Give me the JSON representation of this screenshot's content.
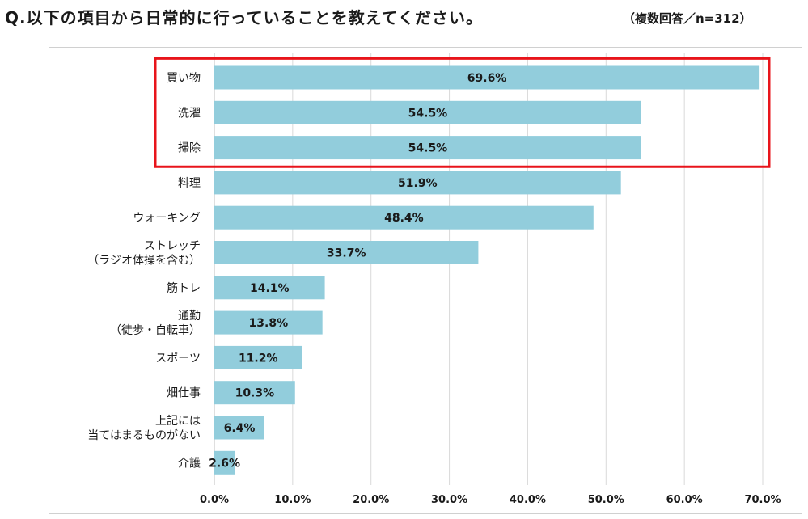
{
  "title": "Q.以下の項目から日常的に行っていることを教えてください。",
  "subtitle": "（複数回答／n=312）",
  "chart_data": {
    "type": "bar",
    "orientation": "horizontal",
    "categories": [
      [
        "買い物"
      ],
      [
        "洗濯"
      ],
      [
        "掃除"
      ],
      [
        "料理"
      ],
      [
        "ウォーキング"
      ],
      [
        "ストレッチ",
        "（ラジオ体操を含む）"
      ],
      [
        "筋トレ"
      ],
      [
        "通勤",
        "（徒歩・自転車）"
      ],
      [
        "スポーツ"
      ],
      [
        "畑仕事"
      ],
      [
        "上記には",
        "当てはまるものがない"
      ],
      [
        "介護"
      ]
    ],
    "values": [
      69.6,
      54.5,
      54.5,
      51.9,
      48.4,
      33.7,
      14.1,
      13.8,
      11.2,
      10.3,
      6.4,
      2.6
    ],
    "value_labels": [
      "69.6%",
      "54.5%",
      "54.5%",
      "51.9%",
      "48.4%",
      "33.7%",
      "14.1%",
      "13.8%",
      "11.2%",
      "10.3%",
      "6.4%",
      "2.6%"
    ],
    "x_ticks": [
      "0.0%",
      "10.0%",
      "20.0%",
      "30.0%",
      "40.0%",
      "50.0%",
      "60.0%",
      "70.0%"
    ],
    "xlim": [
      0,
      70
    ],
    "xlabel": "",
    "ylabel": "",
    "grid": true,
    "highlight": {
      "categories": [
        "買い物",
        "洗濯",
        "掃除"
      ],
      "color": "#e8141b"
    },
    "bar_color": "#92cddc"
  }
}
